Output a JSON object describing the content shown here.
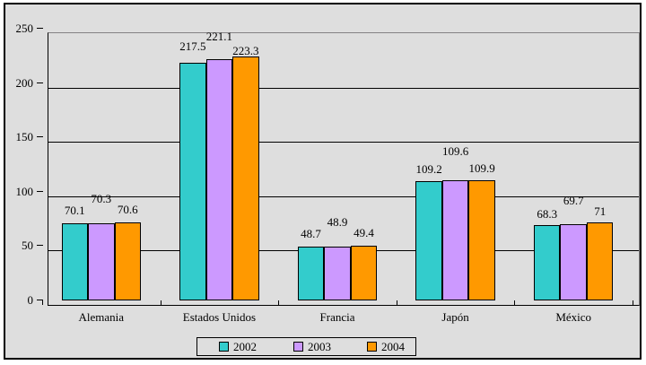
{
  "colors": {
    "page_background": "#ffffff",
    "chart_background": "#DEDEDE",
    "frame_border": "#000000",
    "plot_border_gray": "#848284",
    "gridline": "#000000",
    "bar_border": "#000000"
  },
  "chart_data": {
    "type": "bar",
    "title": "",
    "xlabel": "",
    "ylabel": "",
    "categories": [
      "Alemania",
      "Estados Unidos",
      "Francia",
      "Japón",
      "México"
    ],
    "series": [
      {
        "name": "2002",
        "color": "#33CCCC",
        "values": [
          70.1,
          217.5,
          48.7,
          109.2,
          68.3
        ],
        "labels": [
          "70.1",
          "217.5",
          "48.7",
          "109.2",
          "68.3"
        ]
      },
      {
        "name": "2003",
        "color": "#CC99FF",
        "values": [
          70.3,
          221.1,
          48.9,
          109.6,
          69.7
        ],
        "labels": [
          "70.3",
          "221.1",
          "48.9",
          "109.6",
          "69.7"
        ]
      },
      {
        "name": "2004",
        "color": "#FF9900",
        "values": [
          70.6,
          223.3,
          49.4,
          109.9,
          71
        ],
        "labels": [
          "70.6",
          "223.3",
          "49.4",
          "109.9",
          "71"
        ]
      }
    ],
    "ylim": [
      0,
      250
    ],
    "yticks": [
      0,
      50,
      100,
      150,
      200,
      250
    ],
    "grid": true,
    "legend_position": "bottom",
    "label_offsets": [
      [
        8,
        12,
        8,
        7,
        6
      ],
      [
        21,
        19,
        21,
        26,
        20
      ],
      [
        8,
        0,
        8,
        7,
        6
      ]
    ]
  }
}
